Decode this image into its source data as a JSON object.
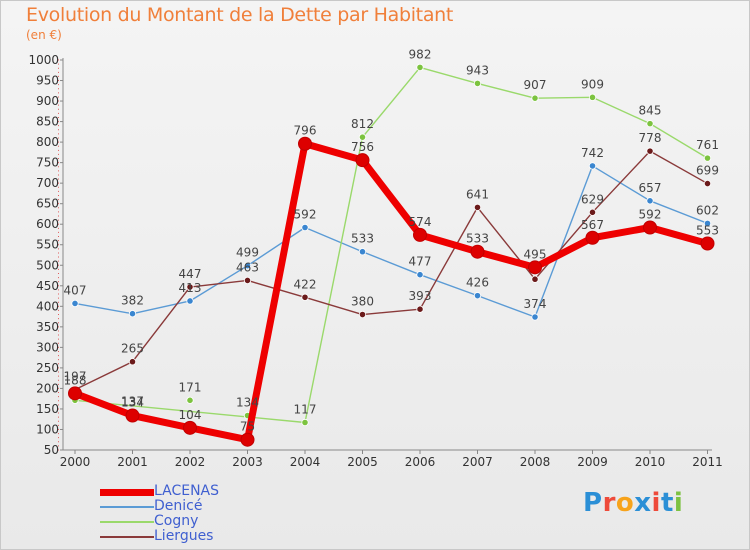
{
  "title": "Evolution du Montant de la Dette par Habitant",
  "unit": "(en €)",
  "logo": {
    "text": "Proxiti",
    "letter_colors": [
      "#2b8fd6",
      "#ee4a3a",
      "#f7a31b",
      "#2b8fd6",
      "#ee4a3a",
      "#2b8fd6",
      "#7dc242"
    ]
  },
  "chart_data": {
    "type": "line",
    "x": [
      "2000",
      "2001",
      "2002",
      "2003",
      "2004",
      "2005",
      "2006",
      "2007",
      "2008",
      "2009",
      "2010",
      "2011"
    ],
    "ylim": [
      50,
      1000
    ],
    "yticks": [
      50,
      100,
      150,
      200,
      250,
      300,
      350,
      400,
      450,
      500,
      550,
      600,
      650,
      700,
      750,
      800,
      850,
      900,
      950,
      1000
    ],
    "grid": false,
    "legend_position": "bottom-left",
    "series": [
      {
        "name": "Denicé",
        "color": "#5b9bd5",
        "marker": "#3a86d0",
        "values": [
          407,
          382,
          413,
          499,
          592,
          533,
          477,
          426,
          374,
          742,
          657,
          602
        ],
        "labels": [
          "407",
          "382",
          "413",
          "499",
          "592",
          "533",
          "477",
          "426",
          "374",
          "742",
          "657",
          "602"
        ]
      },
      {
        "name": "Cogny",
        "color": "#9ad96b",
        "marker": "#7cc33f",
        "values": [
          171,
          137,
          171,
          134,
          117,
          null,
          982,
          943,
          907,
          909,
          845,
          761
        ],
        "connect": [
          [
            0,
            4
          ],
          [
            4,
            5
          ],
          [
            5,
            6
          ],
          [
            6,
            7
          ],
          [
            7,
            8
          ],
          [
            8,
            9
          ],
          [
            9,
            10
          ],
          [
            10,
            11
          ]
        ],
        "point_x_override": {
          "5": 812
        },
        "labels": [
          "",
          "137",
          "171",
          "134",
          "117",
          "812",
          "982",
          "943",
          "907",
          "909",
          "845",
          "761"
        ]
      },
      {
        "name": "Liergues",
        "color": "#8a3a3a",
        "marker": "#6b1a1a",
        "values": [
          197,
          265,
          447,
          463,
          422,
          380,
          393,
          641,
          466,
          629,
          778,
          699
        ],
        "labels": [
          "197",
          "265",
          "447",
          "463",
          "422",
          "380",
          "393",
          "641",
          "",
          "629",
          "778",
          "699"
        ]
      },
      {
        "name": "LACENAS",
        "color": "#ee0000",
        "marker": "#dd0000",
        "values": [
          188,
          134,
          104,
          75,
          796,
          756,
          574,
          533,
          495,
          567,
          592,
          553
        ],
        "labels": [
          "188",
          "134",
          "104",
          "75",
          "796",
          "756",
          "574",
          "533",
          "495",
          "567",
          "592",
          "553"
        ]
      }
    ],
    "legend_order": [
      "LACENAS",
      "Denicé",
      "Cogny",
      "Liergues"
    ]
  }
}
